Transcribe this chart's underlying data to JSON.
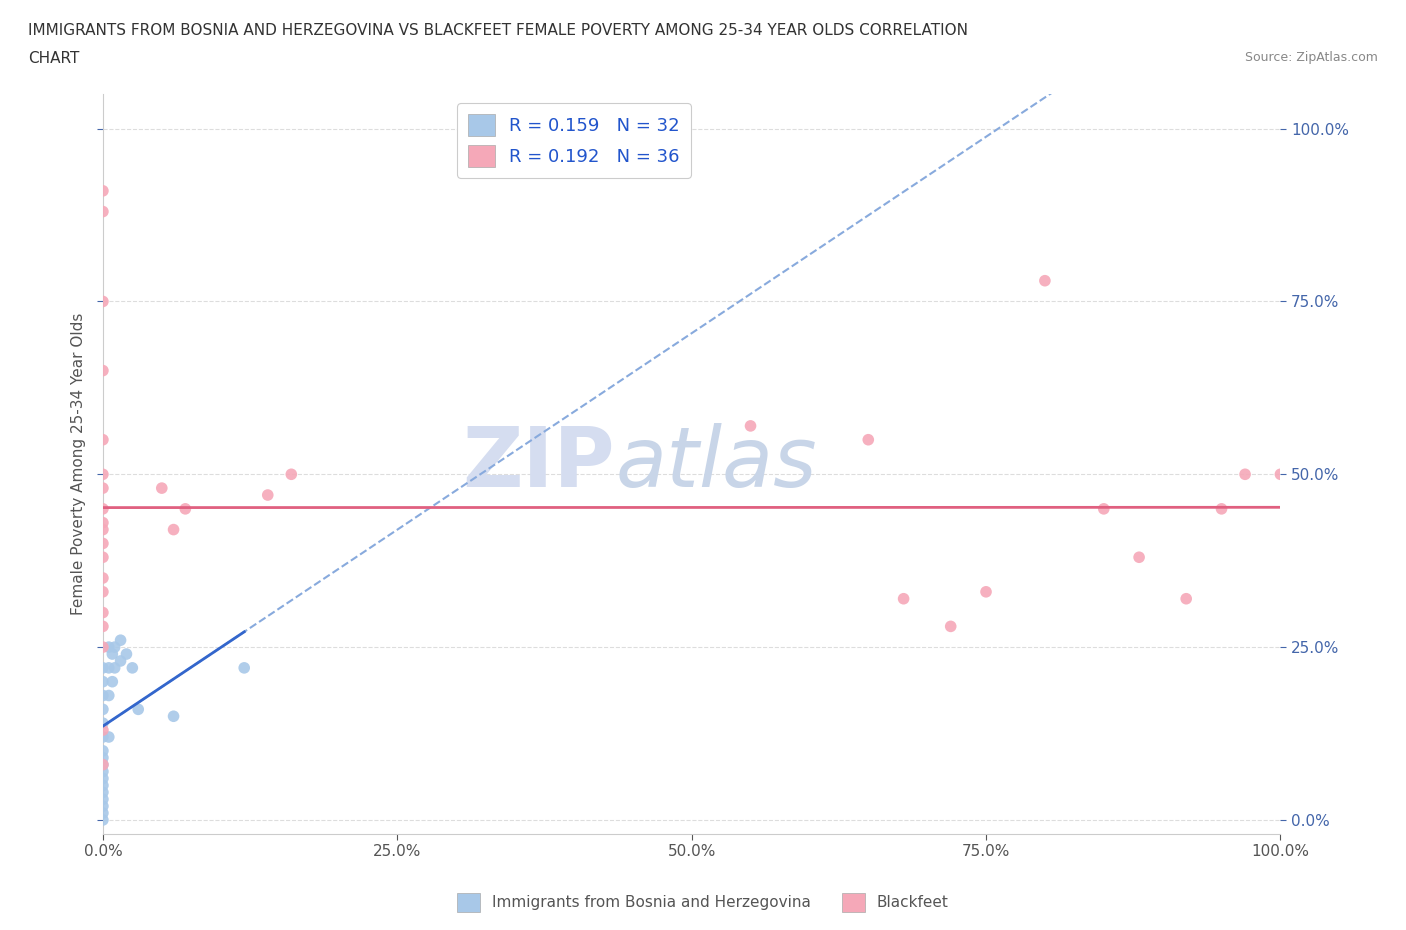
{
  "title_line1": "IMMIGRANTS FROM BOSNIA AND HERZEGOVINA VS BLACKFEET FEMALE POVERTY AMONG 25-34 YEAR OLDS CORRELATION",
  "title_line2": "CHART",
  "source": "Source: ZipAtlas.com",
  "ylabel": "Female Poverty Among 25-34 Year Olds",
  "xlim": [
    0,
    1.0
  ],
  "ylim": [
    -0.02,
    1.05
  ],
  "xticks": [
    0.0,
    0.25,
    0.5,
    0.75,
    1.0
  ],
  "yticks": [
    0.0,
    0.25,
    0.5,
    0.75,
    1.0
  ],
  "xticklabels": [
    "0.0%",
    "25.0%",
    "50.0%",
    "75.0%",
    "100.0%"
  ],
  "yticklabels": [
    "0.0%",
    "25.0%",
    "50.0%",
    "75.0%",
    "100.0%"
  ],
  "blue_scatter": [
    [
      0.0,
      0.0
    ],
    [
      0.0,
      0.01
    ],
    [
      0.0,
      0.02
    ],
    [
      0.0,
      0.03
    ],
    [
      0.0,
      0.04
    ],
    [
      0.0,
      0.05
    ],
    [
      0.0,
      0.06
    ],
    [
      0.0,
      0.07
    ],
    [
      0.0,
      0.08
    ],
    [
      0.0,
      0.09
    ],
    [
      0.0,
      0.1
    ],
    [
      0.0,
      0.12
    ],
    [
      0.0,
      0.14
    ],
    [
      0.0,
      0.16
    ],
    [
      0.0,
      0.18
    ],
    [
      0.0,
      0.2
    ],
    [
      0.0,
      0.22
    ],
    [
      0.005,
      0.12
    ],
    [
      0.005,
      0.18
    ],
    [
      0.005,
      0.22
    ],
    [
      0.005,
      0.25
    ],
    [
      0.008,
      0.2
    ],
    [
      0.008,
      0.24
    ],
    [
      0.01,
      0.22
    ],
    [
      0.01,
      0.25
    ],
    [
      0.015,
      0.23
    ],
    [
      0.015,
      0.26
    ],
    [
      0.02,
      0.24
    ],
    [
      0.025,
      0.22
    ],
    [
      0.03,
      0.16
    ],
    [
      0.06,
      0.15
    ],
    [
      0.12,
      0.22
    ]
  ],
  "pink_scatter": [
    [
      0.0,
      0.88
    ],
    [
      0.0,
      0.91
    ],
    [
      0.0,
      0.75
    ],
    [
      0.0,
      0.65
    ],
    [
      0.0,
      0.55
    ],
    [
      0.0,
      0.5
    ],
    [
      0.0,
      0.48
    ],
    [
      0.0,
      0.45
    ],
    [
      0.0,
      0.43
    ],
    [
      0.0,
      0.42
    ],
    [
      0.0,
      0.4
    ],
    [
      0.0,
      0.38
    ],
    [
      0.0,
      0.35
    ],
    [
      0.0,
      0.33
    ],
    [
      0.0,
      0.3
    ],
    [
      0.0,
      0.28
    ],
    [
      0.0,
      0.25
    ],
    [
      0.0,
      0.13
    ],
    [
      0.0,
      0.08
    ],
    [
      0.05,
      0.48
    ],
    [
      0.06,
      0.42
    ],
    [
      0.07,
      0.45
    ],
    [
      0.14,
      0.47
    ],
    [
      0.16,
      0.5
    ],
    [
      0.55,
      0.57
    ],
    [
      0.65,
      0.55
    ],
    [
      0.68,
      0.32
    ],
    [
      0.72,
      0.28
    ],
    [
      0.75,
      0.33
    ],
    [
      0.8,
      0.78
    ],
    [
      0.85,
      0.45
    ],
    [
      0.88,
      0.38
    ],
    [
      0.92,
      0.32
    ],
    [
      0.95,
      0.45
    ],
    [
      0.97,
      0.5
    ],
    [
      1.0,
      0.5
    ]
  ],
  "blue_R": 0.159,
  "blue_N": 32,
  "pink_R": 0.192,
  "pink_N": 36,
  "blue_color": "#a8c8e8",
  "pink_color": "#f5a8b8",
  "blue_line_solid_color": "#3366cc",
  "blue_line_dash_color": "#88aadd",
  "pink_line_color": "#e06080",
  "legend_label_blue": "Immigrants from Bosnia and Herzegovina",
  "legend_label_pink": "Blackfeet",
  "marker_size": 70,
  "background_color": "#ffffff",
  "watermark_top": "ZIP",
  "watermark_bottom": "atlas",
  "watermark_color": "#d5ddf0"
}
